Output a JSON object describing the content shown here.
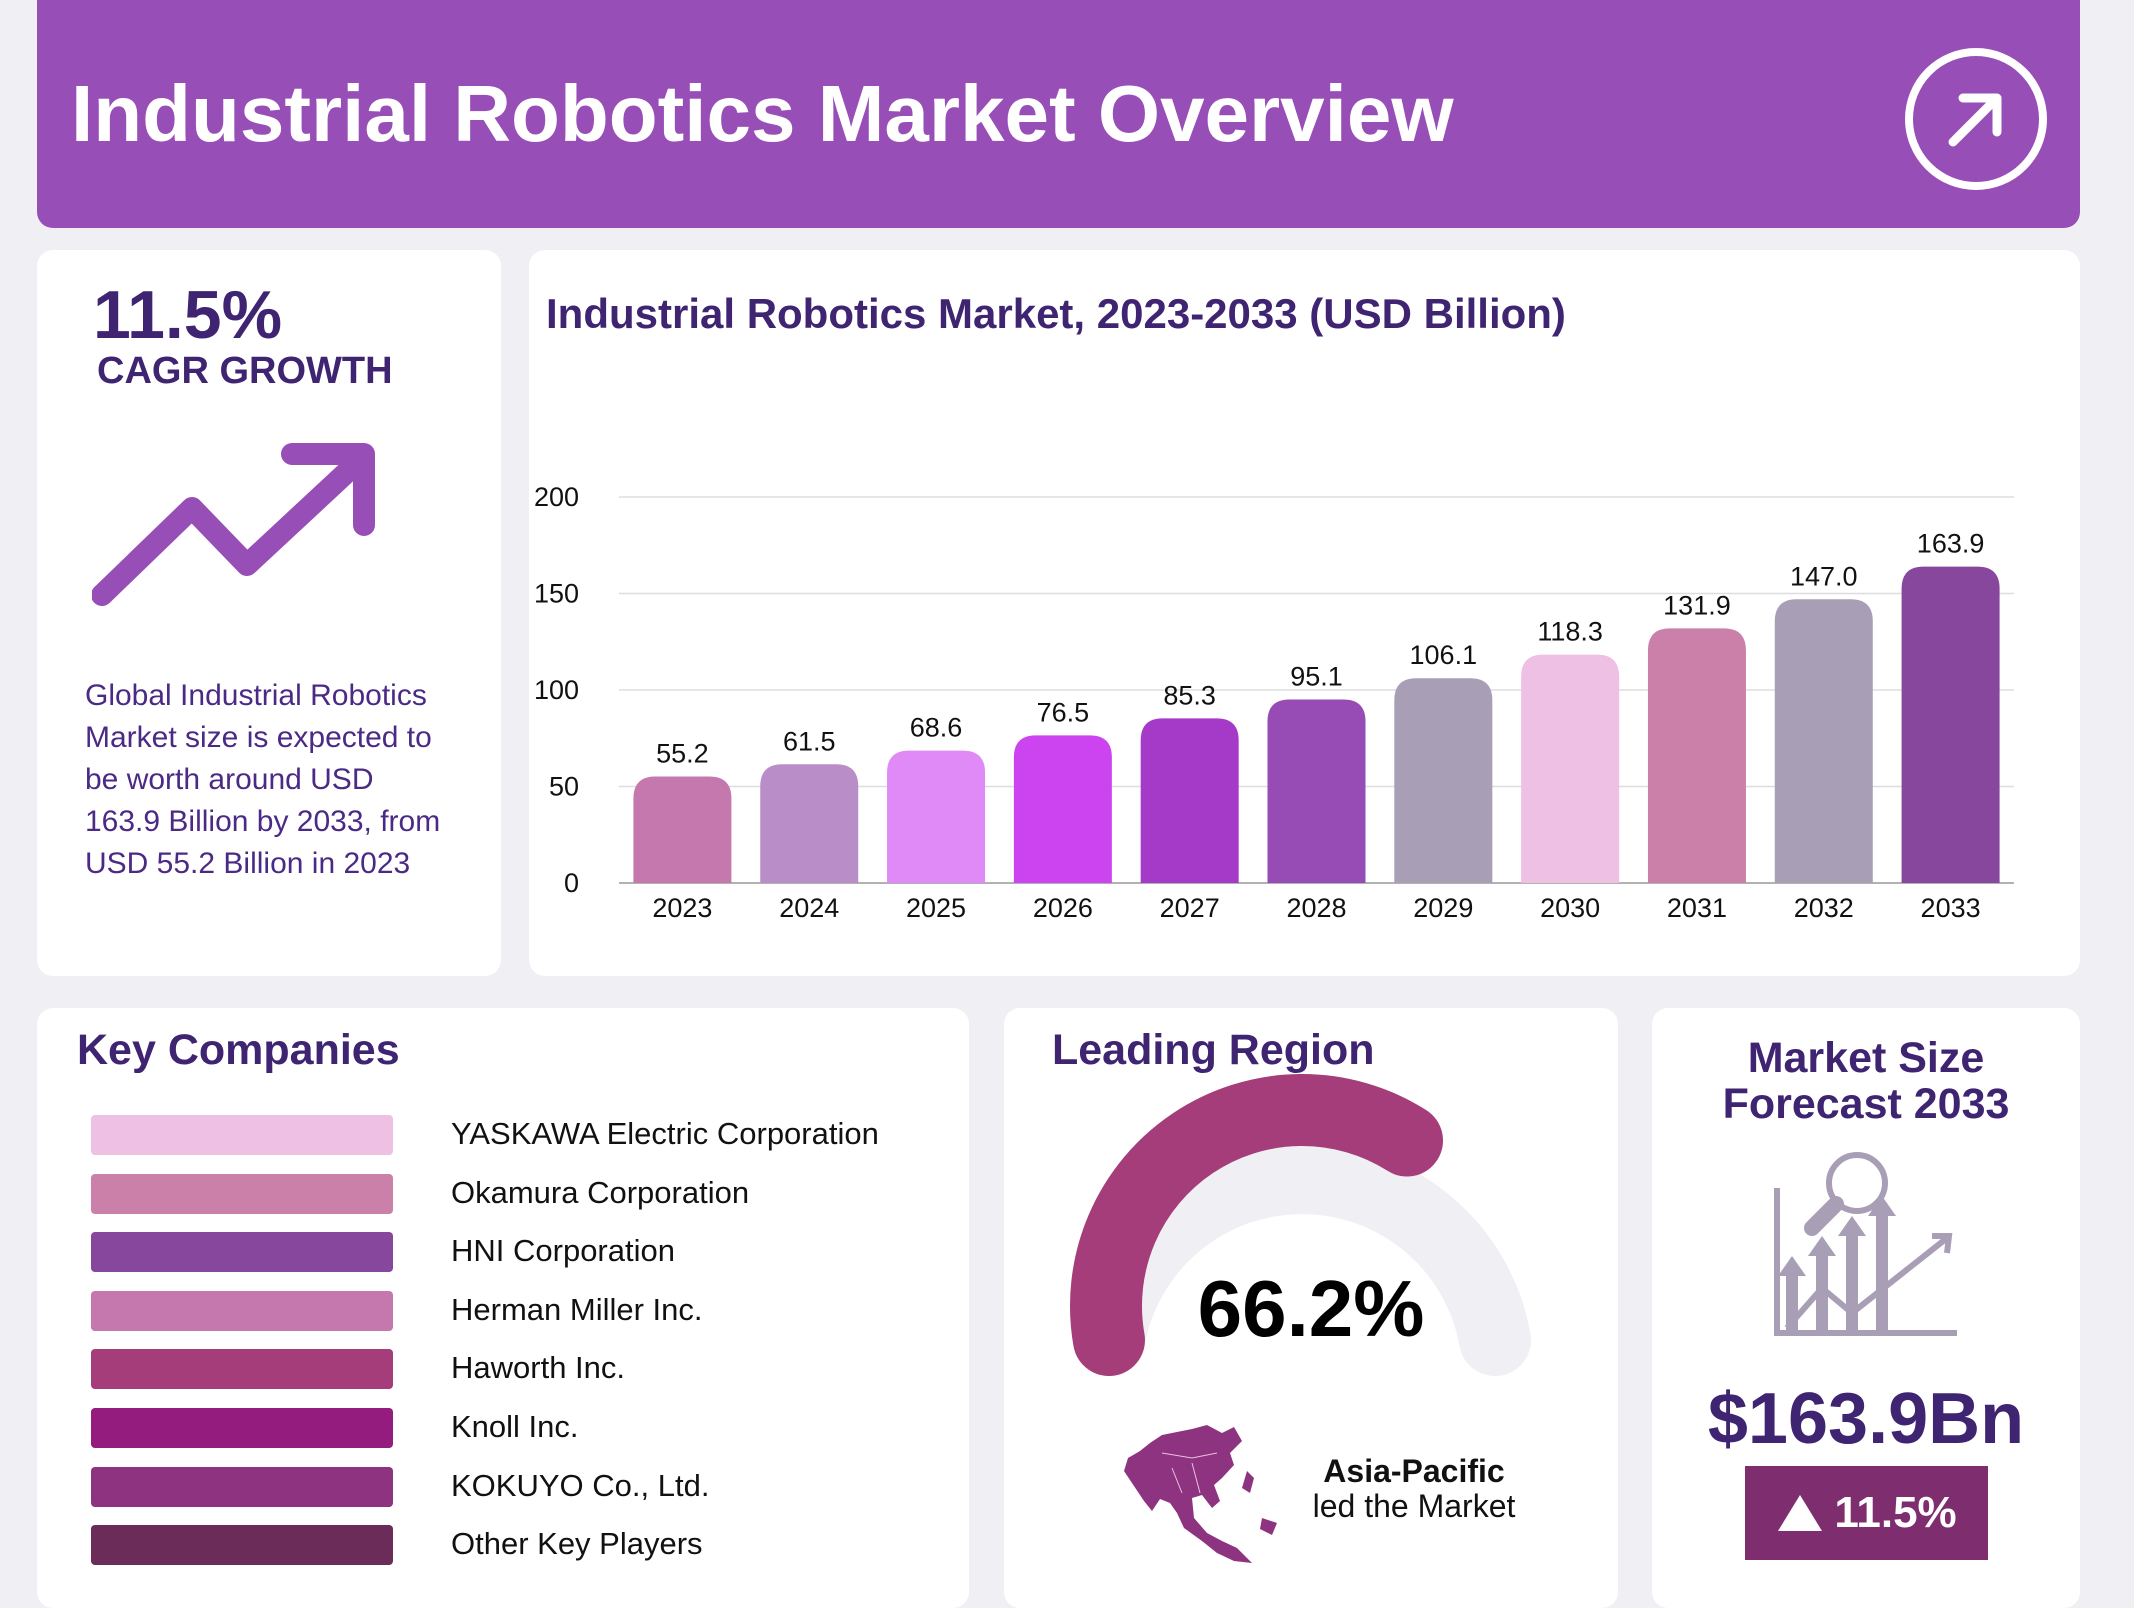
{
  "header": {
    "title": "Industrial Robotics Market Overview",
    "icon": "arrow-up-right-circle-icon"
  },
  "cagr": {
    "value": "11.5%",
    "label": "CAGR GROWTH",
    "icon": "trending-up-icon",
    "description_lines": [
      "Global Industrial Robotics",
      "Market size is expected to",
      "be worth around USD",
      "163.9 Billion by 2033, from",
      "USD 55.2 Billion in 2023"
    ]
  },
  "chart_data": {
    "type": "bar",
    "title": "Industrial Robotics Market, 2023-2033 (USD Billion)",
    "categories": [
      "2023",
      "2024",
      "2025",
      "2026",
      "2027",
      "2028",
      "2029",
      "2030",
      "2031",
      "2032",
      "2033"
    ],
    "values": [
      55.2,
      61.5,
      68.6,
      76.5,
      85.3,
      95.1,
      106.1,
      118.3,
      131.9,
      147.0,
      163.9
    ],
    "value_labels": [
      "55.2",
      "61.5",
      "68.6",
      "76.5",
      "85.3",
      "95.1",
      "106.1",
      "118.3",
      "131.9",
      "147.0",
      "163.9"
    ],
    "colors": [
      "#C578AD",
      "#B98DC8",
      "#E08AF8",
      "#CC44F0",
      "#A53AC8",
      "#964BB5",
      "#A89EB6",
      "#EDC0E4",
      "#CB80AA",
      "#A89EB6",
      "#86479C"
    ],
    "yticks": [
      "0",
      "50",
      "100",
      "150",
      "200"
    ],
    "ylim": [
      0,
      200
    ],
    "xlabel": "",
    "ylabel": "",
    "grid": true
  },
  "companies": {
    "title": "Key Companies",
    "items": [
      {
        "name": "YASKAWA Electric Corporation",
        "color": "#EDC0E4"
      },
      {
        "name": "Okamura Corporation",
        "color": "#CB80AA"
      },
      {
        "name": "HNI Corporation",
        "color": "#86479C"
      },
      {
        "name": "Herman Miller Inc.",
        "color": "#C578AD"
      },
      {
        "name": "Haworth Inc.",
        "color": "#A53D7A"
      },
      {
        "name": "Knoll Inc.",
        "color": "#951C7F"
      },
      {
        "name": "KOKUYO Co., Ltd.",
        "color": "#8D337F"
      },
      {
        "name": "Other Key Players",
        "color": "#6B2C5A"
      }
    ]
  },
  "region": {
    "title": "Leading Region",
    "share_label": "66.2%",
    "share": 0.662,
    "name": "Asia-Pacific",
    "subtitle": "led the Market",
    "gauge_color": "#A53D7A",
    "track_color": "#F0EFF4"
  },
  "forecast": {
    "title_line1": "Market Size",
    "title_line2": "Forecast 2033",
    "value": "$163.9Bn",
    "growth": "11.5%",
    "badge_color": "#7E2D6E"
  }
}
